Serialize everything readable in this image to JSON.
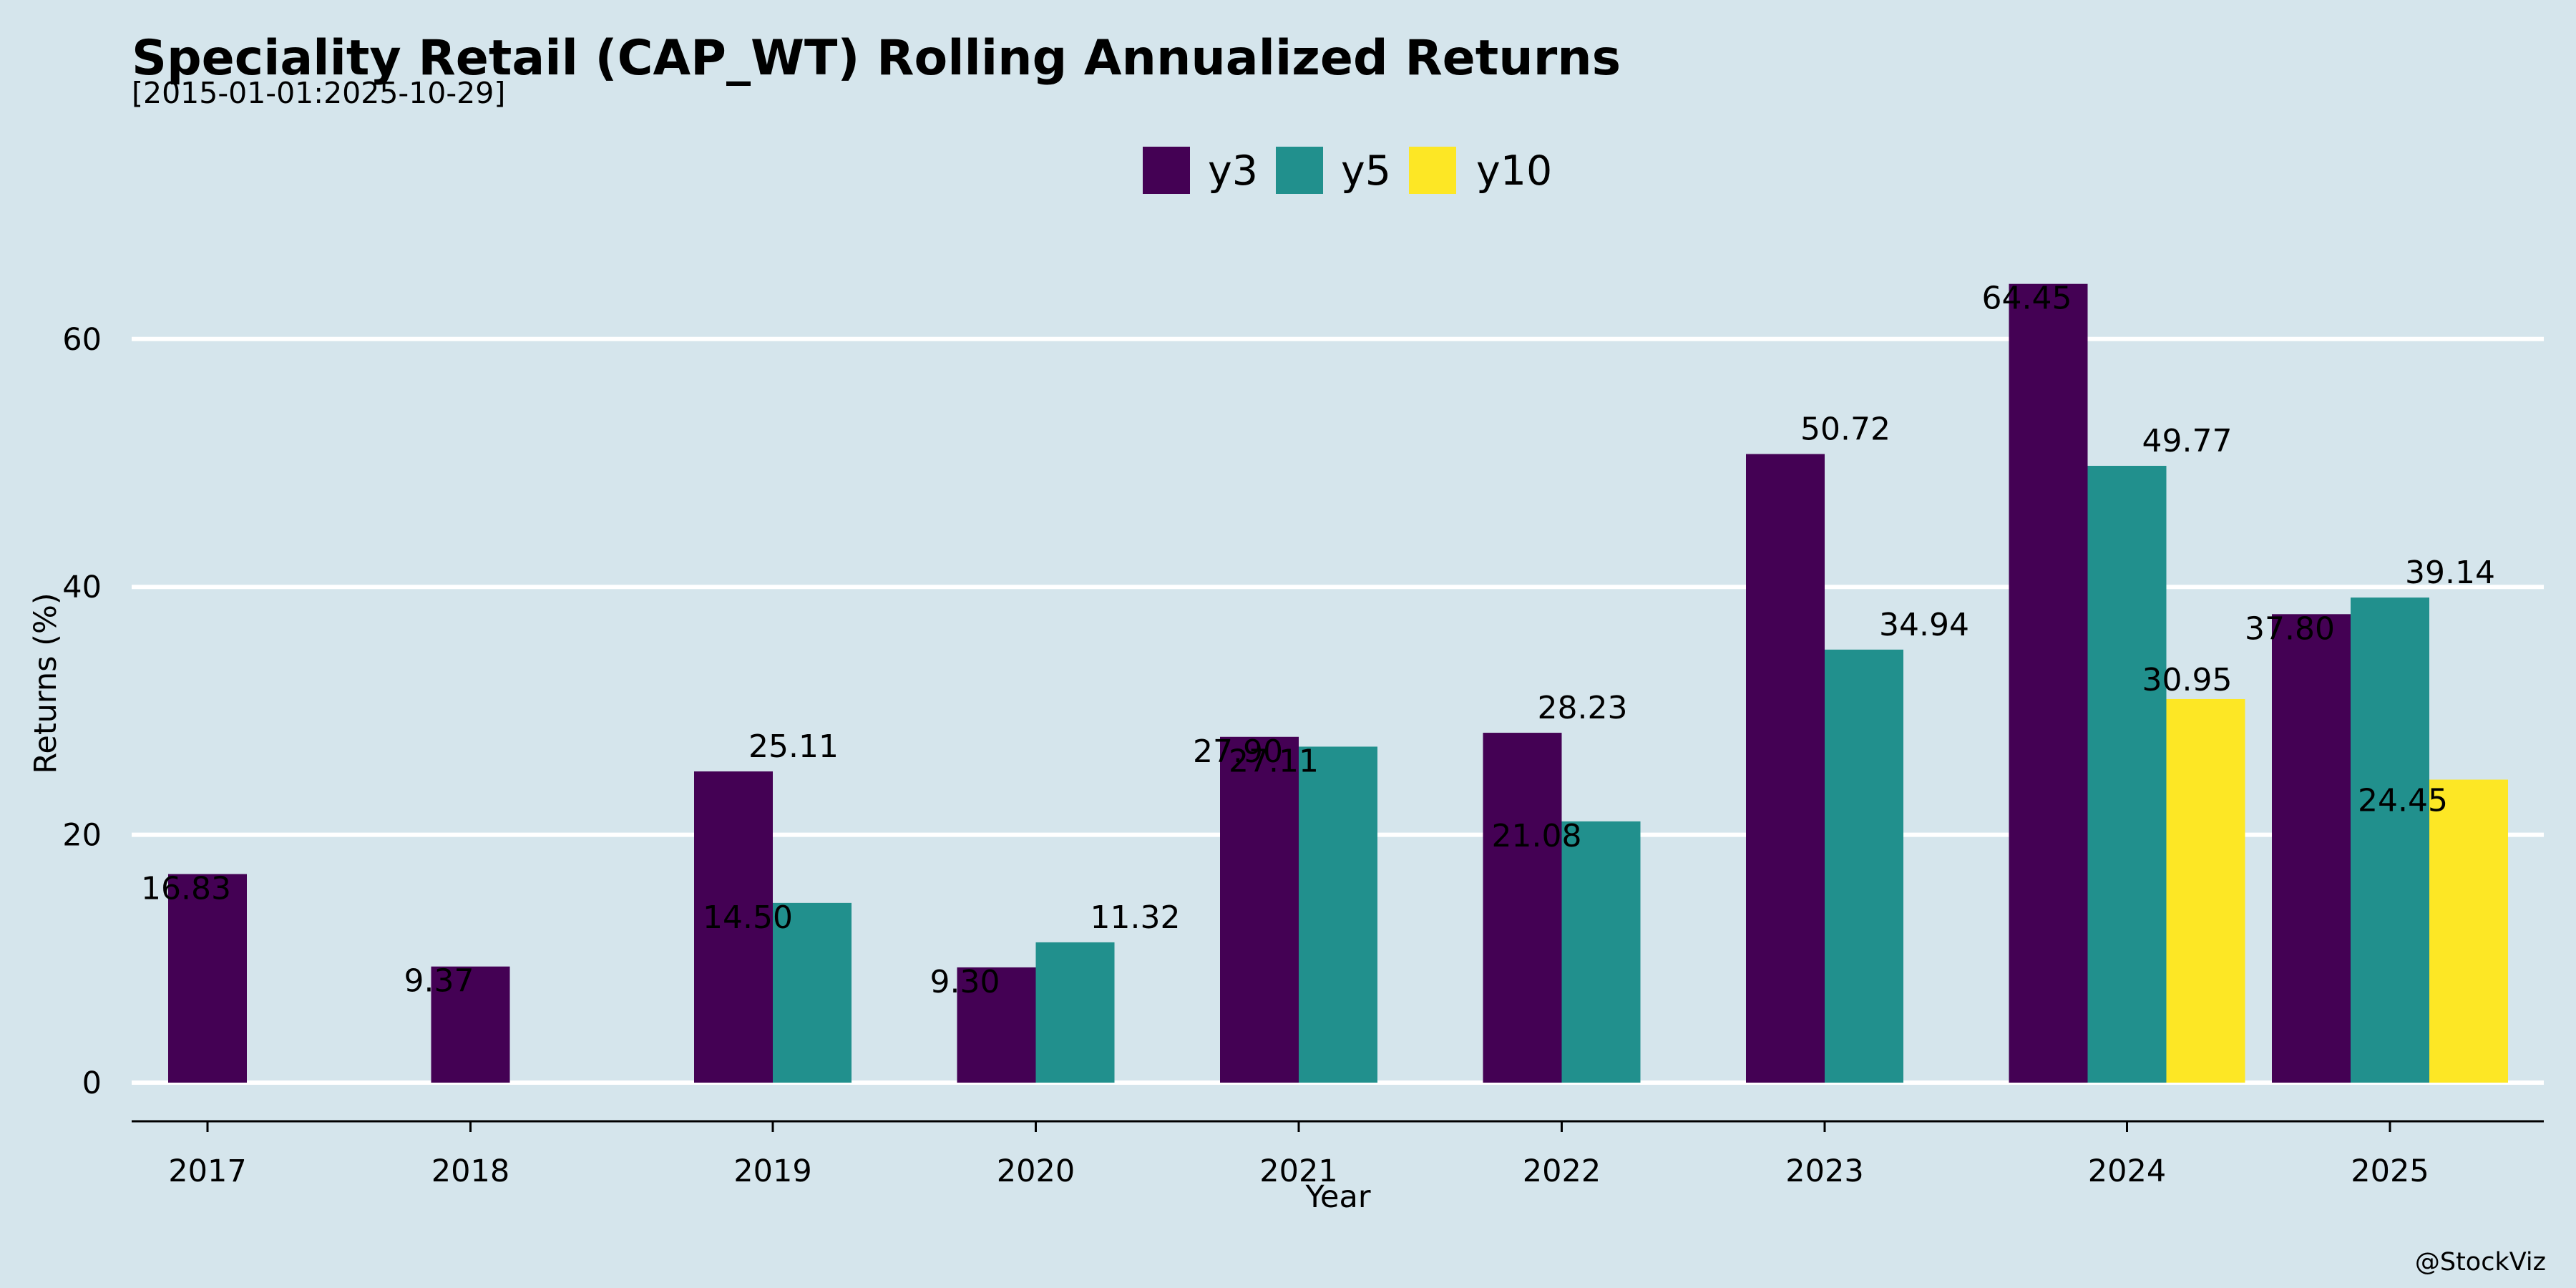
{
  "chart_data": {
    "type": "bar",
    "title": "Speciality Retail (CAP_WT) Rolling Annualized Returns",
    "subtitle": "[2015-01-01:2025-10-29]",
    "xlabel": "Year",
    "ylabel": "Returns (%)",
    "categories": [
      "2017",
      "2018",
      "2019",
      "2020",
      "2021",
      "2022",
      "2023",
      "2024",
      "2025"
    ],
    "series": [
      {
        "name": "y3",
        "color": "#440154",
        "values": [
          16.83,
          9.37,
          25.11,
          9.3,
          27.9,
          28.23,
          50.72,
          64.45,
          37.8
        ]
      },
      {
        "name": "y5",
        "color": "#21908d",
        "values": [
          null,
          null,
          14.5,
          11.32,
          27.11,
          21.08,
          34.94,
          49.77,
          39.14
        ]
      },
      {
        "name": "y10",
        "color": "#fde725",
        "values": [
          null,
          null,
          null,
          null,
          null,
          null,
          null,
          30.95,
          24.45
        ]
      }
    ],
    "labels": [
      [
        "16.83",
        "9.37",
        "25.11",
        "9.30",
        "27.90",
        "28.23",
        "50.72",
        "64.45",
        "37.80"
      ],
      [
        null,
        null,
        "14.50",
        "11.32",
        "27.11",
        "21.08",
        "34.94",
        "49.77",
        "39.14"
      ],
      [
        null,
        null,
        null,
        null,
        null,
        null,
        null,
        "30.95",
        "24.45"
      ]
    ],
    "yticks": [
      0,
      20,
      40,
      60
    ],
    "ylim": [
      0,
      67
    ],
    "grid": true,
    "legend_position": "top-center",
    "watermark": "@StockViz"
  }
}
